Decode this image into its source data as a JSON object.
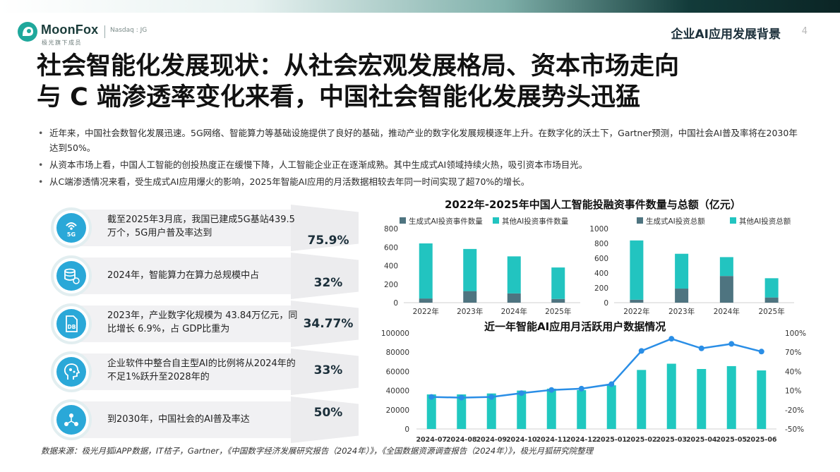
{
  "brand": {
    "name": "MoonFox",
    "subtitle": "极光旗下成员",
    "ticker": "Nasdaq : JG"
  },
  "header": {
    "section": "企业AI应用发展背景",
    "page": "4"
  },
  "title": {
    "line1": "社会智能化发展现状：从社会宏观发展格局、资本市场走向",
    "line2": "与 C 端渗透率变化来看，中国社会智能化发展势头迅猛"
  },
  "bullets": [
    "近年来，中国社会数智化发展迅速。5G网络、智能算力等基础设施提供了良好的基础，推动产业的数字化发展规模逐年上升。在数字化的沃土下，Gartner预测，中国社会AI普及率将在2030年达到50%。",
    "从资本市场上看，中国人工智能的创投热度正在缓慢下降，人工智能企业正在逐渐成熟。其中生成式AI领域持续火热，吸引资本市场目光。",
    "从C端渗透情况来看，受生成式AI应用爆火的影响，2025年智能AI应用的月活数据相较去年同一时间实现了超70%的增长。"
  ],
  "kpis": [
    {
      "icon": "signal-5g-icon",
      "icon_text": "5G",
      "text": "截至2025年3月底，我国已建成5G基站439.5万个，5G用户普及率达到",
      "value": "75.9%"
    },
    {
      "icon": "database-cloud-icon",
      "icon_text": "",
      "text": "2024年，智能算力在算力总规模中占",
      "value": "32%"
    },
    {
      "icon": "db-document-icon",
      "icon_text": "DB",
      "text": "2023年，产业数字化规模为 43.84万亿元，同比增长 6.9%，占 GDP比重为",
      "value": "34.77%"
    },
    {
      "icon": "ai-head-icon",
      "icon_text": "",
      "text": "企业软件中整合自主型AI的比例将从2024年的不足1%跃升至2028年的",
      "value": "33%"
    },
    {
      "icon": "ai-network-icon",
      "icon_text": "",
      "text": "到2030年，中国社会的AI普及率达",
      "value": "50%"
    }
  ],
  "source": "数据来源：极光月狐iAPP数据，IT桔子，Gartner，《中国数字经济发展研究报告（2024年）》，《全国数据资源调查报告（2024年）》，极光月狐研究院整理",
  "colors": {
    "dark": "#4e7480",
    "teal": "#22c4c0",
    "line": "#2a8ee6",
    "bar": "#20c8c0"
  },
  "chart_data": [
    {
      "type": "bar",
      "stacked": true,
      "title": "2022年-2025年中国人工智能投融资事件数量与总额（亿元）",
      "categories": [
        "2022年",
        "2023年",
        "2024年",
        "2025年"
      ],
      "series": [
        {
          "name": "生成式AI投资事件数量",
          "values": [
            45,
            125,
            100,
            40
          ]
        },
        {
          "name": "其他AI投资事件数量",
          "values": [
            595,
            455,
            400,
            340
          ]
        }
      ],
      "ylim": [
        0,
        800
      ],
      "yticks": [
        "800",
        "600",
        "400",
        "200",
        "0"
      ]
    },
    {
      "type": "bar",
      "stacked": true,
      "title": "",
      "categories": [
        "2022年",
        "2023年",
        "2024年",
        "2025年"
      ],
      "series": [
        {
          "name": "生成式AI投资总额",
          "values": [
            40,
            190,
            360,
            70
          ]
        },
        {
          "name": "其他AI投资总额",
          "values": [
            800,
            470,
            255,
            260
          ]
        }
      ],
      "ylim": [
        0,
        1000
      ],
      "yticks": [
        "1000",
        "800",
        "600",
        "400",
        "200",
        "0"
      ]
    },
    {
      "type": "bar+line",
      "title": "近一年智能AI应用月活跃用户数据情况",
      "categories": [
        "2024-07",
        "2024-08",
        "2024-09",
        "2024-10",
        "2024-11",
        "2024-12",
        "2025-01",
        "2025-02",
        "2025-03",
        "2025-04",
        "2025-05",
        "2025-06"
      ],
      "bars": [
        36000,
        36000,
        37000,
        40000,
        42000,
        40500,
        45500,
        61500,
        68000,
        62500,
        65500,
        61000
      ],
      "line": [
        0,
        -1,
        0,
        6,
        11,
        13,
        20,
        72,
        91,
        76,
        83,
        71
      ],
      "ylim": [
        0,
        100000
      ],
      "y2lim": [
        -50,
        100
      ],
      "yticks": [
        "100000",
        "80000",
        "60000",
        "40000",
        "20000",
        "0"
      ],
      "y2ticks": [
        "100%",
        "70%",
        "40%",
        "10%",
        "-20%",
        "-50%"
      ]
    }
  ]
}
